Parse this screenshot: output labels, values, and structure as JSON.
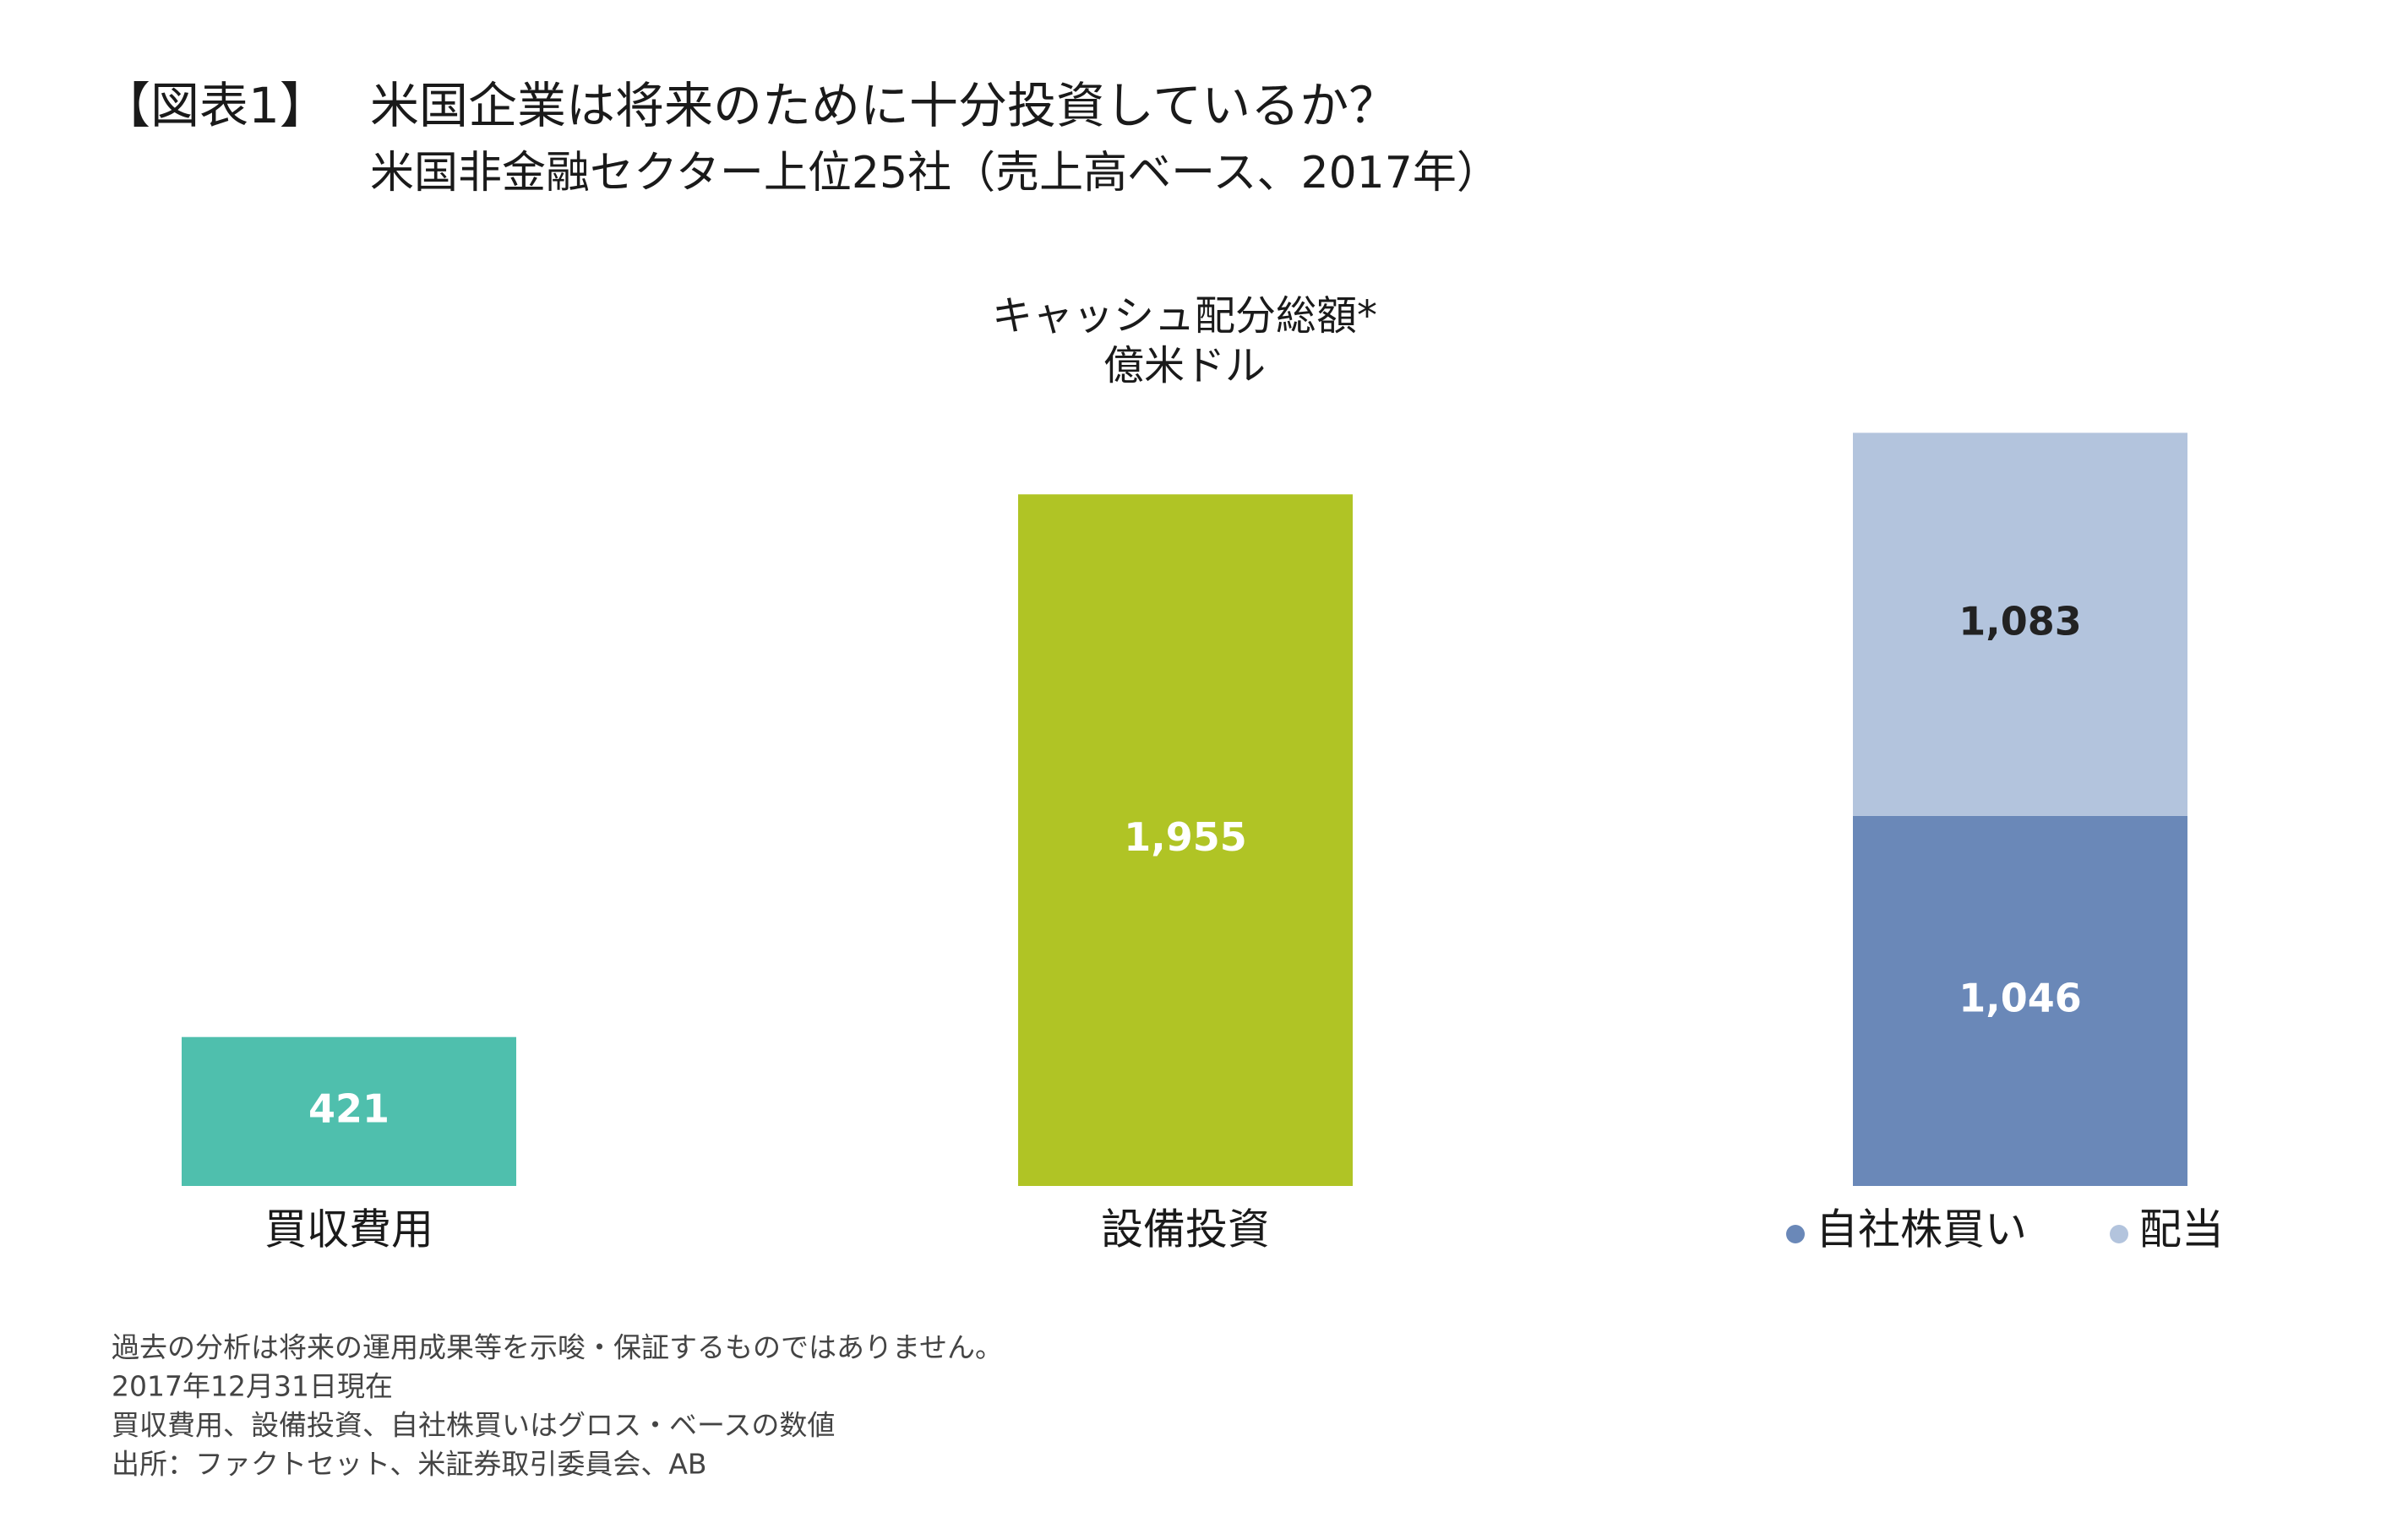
{
  "chart_data": {
    "type": "bar",
    "figure_label": "【図表1】",
    "title": "米国企業は将来のために十分投資しているか？",
    "subtitle": "米国非金融セクター上位25社（売上高ベース、2017年）",
    "axis_title": "キャッシュ配分総額*",
    "unit": "億米ドル",
    "categories": [
      "買収費用",
      "設備投資"
    ],
    "values": [
      421,
      1955
    ],
    "value_labels": [
      "421",
      "1,955"
    ],
    "colors": [
      "#4fbfad",
      "#b0c425"
    ],
    "stack": {
      "series": [
        {
          "name": "自社株買い",
          "color": "#6a88b8",
          "values": [
            1046
          ],
          "value_labels": [
            "1,046"
          ],
          "label_color": "#ffffff"
        },
        {
          "name": "配当",
          "color": "#b3c4dd",
          "values": [
            1083
          ],
          "value_labels": [
            "1,083"
          ],
          "label_color": "#222222"
        }
      ]
    },
    "notes": [
      "過去の分析は将来の運用成果等を示唆・保証するものではありません。",
      "2017年12月31日現在",
      "買収費用、設備投資、自社株買いはグロス・ベースの数値",
      "出所：ファクトセット、米証券取引委員会、AB"
    ]
  }
}
